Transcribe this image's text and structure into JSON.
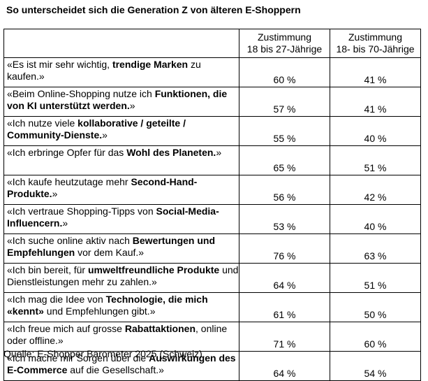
{
  "title": "So unterscheidet sich die Generation Z von älteren E-Shoppern",
  "header": {
    "col1": "",
    "col2_line1": "Zustimmung",
    "col2_line2": "18 bis 27-Jährige",
    "col3_line1": "Zustimmung",
    "col3_line2": "18- bis 70-Jährige"
  },
  "rows": [
    {
      "segments": [
        "«Es ist mir sehr wichtig, ",
        "trendige Marken",
        " zu kaufen.»"
      ],
      "gen_z": "60 %",
      "all": "41 %"
    },
    {
      "segments": [
        "«Beim Online-Shopping nutze ich ",
        "Funktionen, die von KI unterstützt werden.",
        "»"
      ],
      "gen_z": "57 %",
      "all": "41 %"
    },
    {
      "segments": [
        "«Ich nutze viele ",
        "kollaborative / geteilte / Community-Dienste.",
        "»"
      ],
      "gen_z": "55 %",
      "all": "40 %"
    },
    {
      "segments": [
        "«Ich erbringe Opfer für das ",
        "Wohl des Planeten.",
        "»"
      ],
      "gen_z": "65 %",
      "all": "51 %"
    },
    {
      "segments": [
        "«Ich kaufe heutzutage mehr ",
        "Second-Hand-Produkte.",
        "»"
      ],
      "gen_z": "56 %",
      "all": "42 %"
    },
    {
      "segments": [
        "«Ich vertraue Shopping-Tipps von ",
        "Social-Media-Influencern.",
        "»"
      ],
      "gen_z": "53 %",
      "all": "40 %"
    },
    {
      "segments": [
        "«Ich suche online aktiv nach ",
        "Bewertungen und Empfehlungen",
        " vor dem Kauf.»"
      ],
      "gen_z": "76 %",
      "all": "63 %"
    },
    {
      "segments": [
        "«Ich bin bereit, für ",
        "umweltfreundliche Produkte",
        " und Dienstleistungen mehr zu zahlen.»"
      ],
      "gen_z": "64 %",
      "all": "51 %"
    },
    {
      "segments": [
        "«Ich mag die Idee von ",
        "Technologie, die mich «kennt»",
        " und Empfehlungen gibt.»"
      ],
      "gen_z": "61 %",
      "all": "50 %"
    },
    {
      "segments": [
        "«Ich freue mich auf grosse ",
        "Rabattaktionen",
        ", online oder offline.»"
      ],
      "gen_z": "71 %",
      "all": "60 %"
    },
    {
      "segments": [
        "«Ich mache mir Sorgen über die ",
        "Auswirkungen des E-Commerce",
        " auf die Gesellschaft.»"
      ],
      "gen_z": "64 %",
      "all": "54 %"
    }
  ],
  "source": "Quelle: E-Shopper Barometer 2025 (Schweiz)."
}
